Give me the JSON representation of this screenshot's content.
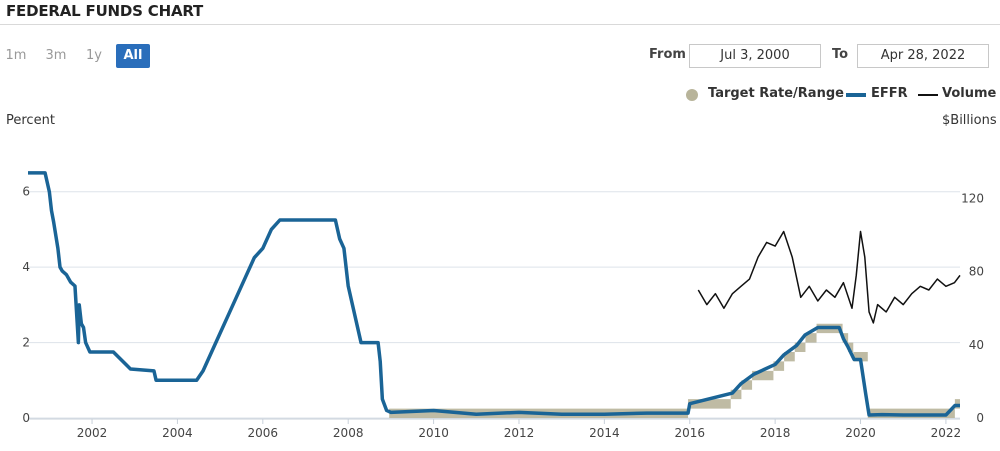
{
  "header": {
    "title": "FEDERAL FUNDS CHART"
  },
  "range_buttons": [
    {
      "label": "1m",
      "active": false
    },
    {
      "label": "3m",
      "active": false
    },
    {
      "label": "1y",
      "active": false
    },
    {
      "label": "All",
      "active": true
    }
  ],
  "date_range": {
    "from_label": "From",
    "from_value": "Jul 3, 2000",
    "to_label": "To",
    "to_value": "Apr 28, 2022"
  },
  "colors": {
    "target": "#b8b49a",
    "effr": "#1a6496",
    "volume": "#111111",
    "grid": "#dde3ea",
    "active_button": "#2a6ebb"
  },
  "chart_data": {
    "type": "line",
    "left_axis_label": "Percent",
    "right_axis_label": "$Billions",
    "x_range": [
      2000.5,
      2022.33
    ],
    "x_ticks": [
      "2002",
      "2004",
      "2006",
      "2008",
      "2010",
      "2012",
      "2014",
      "2016",
      "2018",
      "2020",
      "2022"
    ],
    "y_left": {
      "range": [
        0,
        7
      ],
      "ticks": [
        "0",
        "2",
        "4",
        "6"
      ]
    },
    "y_right": {
      "range": [
        0,
        140
      ],
      "ticks": [
        "0",
        "40",
        "80",
        "120"
      ]
    },
    "grid": true,
    "legend": {
      "position": "top-right",
      "items": [
        "Target Rate/Range",
        "EFFR",
        "Volume"
      ]
    },
    "series": [
      {
        "name": "Target Rate/Range",
        "axis": "left",
        "style": "band",
        "x": [
          2008.96,
          2015.96,
          2015.96,
          2016.96,
          2016.96,
          2017.21,
          2017.21,
          2017.46,
          2017.46,
          2017.96,
          2017.96,
          2018.21,
          2018.21,
          2018.46,
          2018.46,
          2018.71,
          2018.71,
          2018.97,
          2018.97,
          2019.58,
          2019.58,
          2019.71,
          2019.71,
          2019.83,
          2019.83,
          2020.17,
          2020.17,
          2022.21,
          2022.21,
          2022.33
        ],
        "low": [
          0,
          0,
          0.25,
          0.25,
          0.5,
          0.5,
          0.75,
          0.75,
          1.0,
          1.0,
          1.25,
          1.25,
          1.5,
          1.5,
          1.75,
          1.75,
          2.0,
          2.0,
          2.25,
          2.25,
          2.0,
          2.0,
          1.75,
          1.75,
          1.5,
          1.5,
          0,
          0,
          0.25,
          0.25
        ],
        "high": [
          0.25,
          0.25,
          0.5,
          0.5,
          0.75,
          0.75,
          1.0,
          1.0,
          1.25,
          1.25,
          1.5,
          1.5,
          1.75,
          1.75,
          2.0,
          2.0,
          2.25,
          2.25,
          2.5,
          2.5,
          2.25,
          2.25,
          2.0,
          2.0,
          1.75,
          1.75,
          0.25,
          0.25,
          0.5,
          0.5
        ]
      },
      {
        "name": "EFFR",
        "axis": "left",
        "x": [
          2000.5,
          2000.6,
          2000.9,
          2001.0,
          2001.05,
          2001.1,
          2001.2,
          2001.25,
          2001.3,
          2001.4,
          2001.5,
          2001.6,
          2001.68,
          2001.7,
          2001.75,
          2001.8,
          2001.85,
          2001.95,
          2002.5,
          2002.9,
          2003.45,
          2003.5,
          2004.45,
          2004.6,
          2004.8,
          2005.0,
          2005.2,
          2005.4,
          2005.6,
          2005.8,
          2006.0,
          2006.2,
          2006.4,
          2006.5,
          2007.7,
          2007.8,
          2007.9,
          2008.0,
          2008.1,
          2008.3,
          2008.7,
          2008.75,
          2008.8,
          2008.9,
          2009.0,
          2010.0,
          2011.0,
          2012.0,
          2013.0,
          2014.0,
          2015.0,
          2015.96,
          2016.0,
          2017.0,
          2017.2,
          2017.5,
          2018.0,
          2018.2,
          2018.5,
          2018.7,
          2019.0,
          2019.5,
          2019.6,
          2019.7,
          2019.85,
          2020.0,
          2020.12,
          2020.2,
          2020.5,
          2021.0,
          2022.0,
          2022.21,
          2022.33
        ],
        "values": [
          6.5,
          6.5,
          6.5,
          6.0,
          5.5,
          5.2,
          4.5,
          4.0,
          3.9,
          3.8,
          3.6,
          3.5,
          2.0,
          3.0,
          2.5,
          2.4,
          2.0,
          1.75,
          1.75,
          1.3,
          1.25,
          1.0,
          1.0,
          1.25,
          1.75,
          2.25,
          2.75,
          3.25,
          3.75,
          4.25,
          4.5,
          5.0,
          5.25,
          5.25,
          5.25,
          4.75,
          4.5,
          3.5,
          3.0,
          2.0,
          2.0,
          1.5,
          0.5,
          0.2,
          0.15,
          0.2,
          0.1,
          0.15,
          0.1,
          0.1,
          0.13,
          0.13,
          0.38,
          0.66,
          0.91,
          1.16,
          1.42,
          1.67,
          1.92,
          2.2,
          2.4,
          2.4,
          2.1,
          1.9,
          1.55,
          1.55,
          0.65,
          0.08,
          0.09,
          0.08,
          0.08,
          0.33,
          0.33
        ]
      },
      {
        "name": "Volume",
        "axis": "right",
        "x": [
          2016.2,
          2016.4,
          2016.6,
          2016.8,
          2017.0,
          2017.2,
          2017.4,
          2017.6,
          2017.8,
          2018.0,
          2018.2,
          2018.4,
          2018.6,
          2018.8,
          2019.0,
          2019.2,
          2019.4,
          2019.6,
          2019.8,
          2019.9,
          2020.0,
          2020.1,
          2020.2,
          2020.3,
          2020.4,
          2020.6,
          2020.8,
          2021.0,
          2021.2,
          2021.4,
          2021.6,
          2021.8,
          2022.0,
          2022.2,
          2022.33
        ],
        "values": [
          70,
          62,
          68,
          60,
          68,
          72,
          76,
          88,
          96,
          94,
          102,
          88,
          66,
          72,
          64,
          70,
          66,
          74,
          60,
          78,
          102,
          88,
          58,
          52,
          62,
          58,
          66,
          62,
          68,
          72,
          70,
          76,
          72,
          74,
          78
        ]
      }
    ]
  }
}
